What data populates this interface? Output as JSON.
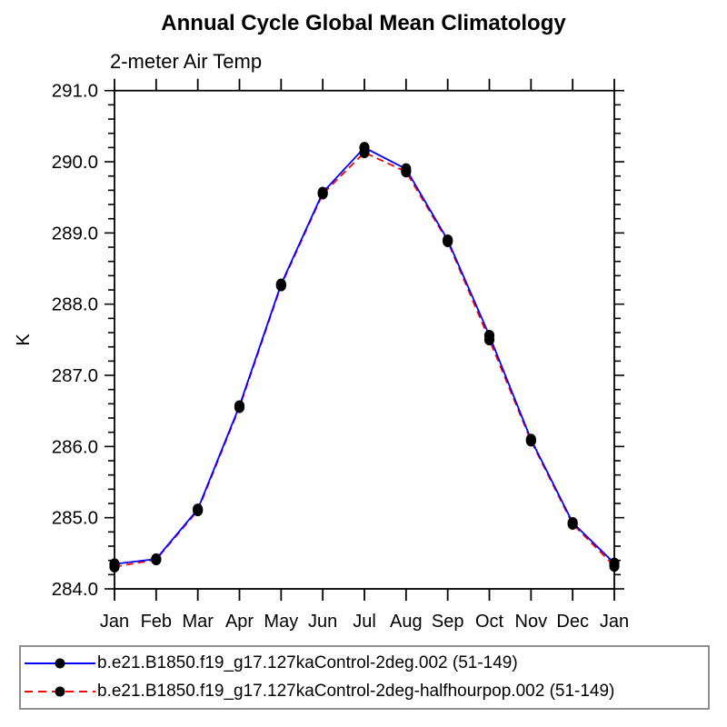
{
  "title": "Annual Cycle Global Mean Climatology",
  "subtitle": "2-meter Air Temp",
  "chart_data": {
    "type": "line",
    "title": "Annual Cycle Global Mean Climatology",
    "subtitle": "2-meter Air Temp",
    "xlabel": "",
    "ylabel": "K",
    "x_categories": [
      "Jan",
      "Feb",
      "Mar",
      "Apr",
      "May",
      "Jun",
      "Jul",
      "Aug",
      "Sep",
      "Oct",
      "Nov",
      "Dec",
      "Jan"
    ],
    "ylim": [
      284.0,
      291.0
    ],
    "ytick_major_step": 1.0,
    "ytick_minor_step": 0.2,
    "ytick_labels": [
      "284.0",
      "285.0",
      "286.0",
      "287.0",
      "288.0",
      "289.0",
      "290.0",
      "291.0"
    ],
    "grid": "off",
    "legend_position": "bottom",
    "axis_color": "#000000",
    "marker_color": "#000000",
    "series": [
      {
        "name": "b.e21.B1850.f19_g17.127kaControl-2deg.002 (51-149)",
        "color": "#0000ff",
        "line_style": "solid",
        "marker": "black-dot",
        "values": [
          284.35,
          284.42,
          285.12,
          286.57,
          288.28,
          289.57,
          290.2,
          289.9,
          288.9,
          287.56,
          286.1,
          284.93,
          284.36
        ]
      },
      {
        "name": "b.e21.B1850.f19_g17.127kaControl-2deg-halfhourpop.002 (51-149)",
        "color": "#ff0000",
        "line_style": "dashed",
        "marker": "black-dot",
        "values": [
          284.31,
          284.41,
          285.1,
          286.55,
          288.26,
          289.55,
          290.13,
          289.86,
          288.88,
          287.5,
          286.08,
          284.91,
          284.32
        ]
      }
    ]
  },
  "legend": {
    "items": [
      {
        "label": "b.e21.B1850.f19_g17.127kaControl-2deg.002 (51-149)",
        "color": "#0000ff",
        "line_style": "solid"
      },
      {
        "label": "b.e21.B1850.f19_g17.127kaControl-2deg-halfhourpop.002 (51-149)",
        "color": "#ff0000",
        "line_style": "dashed"
      }
    ]
  }
}
